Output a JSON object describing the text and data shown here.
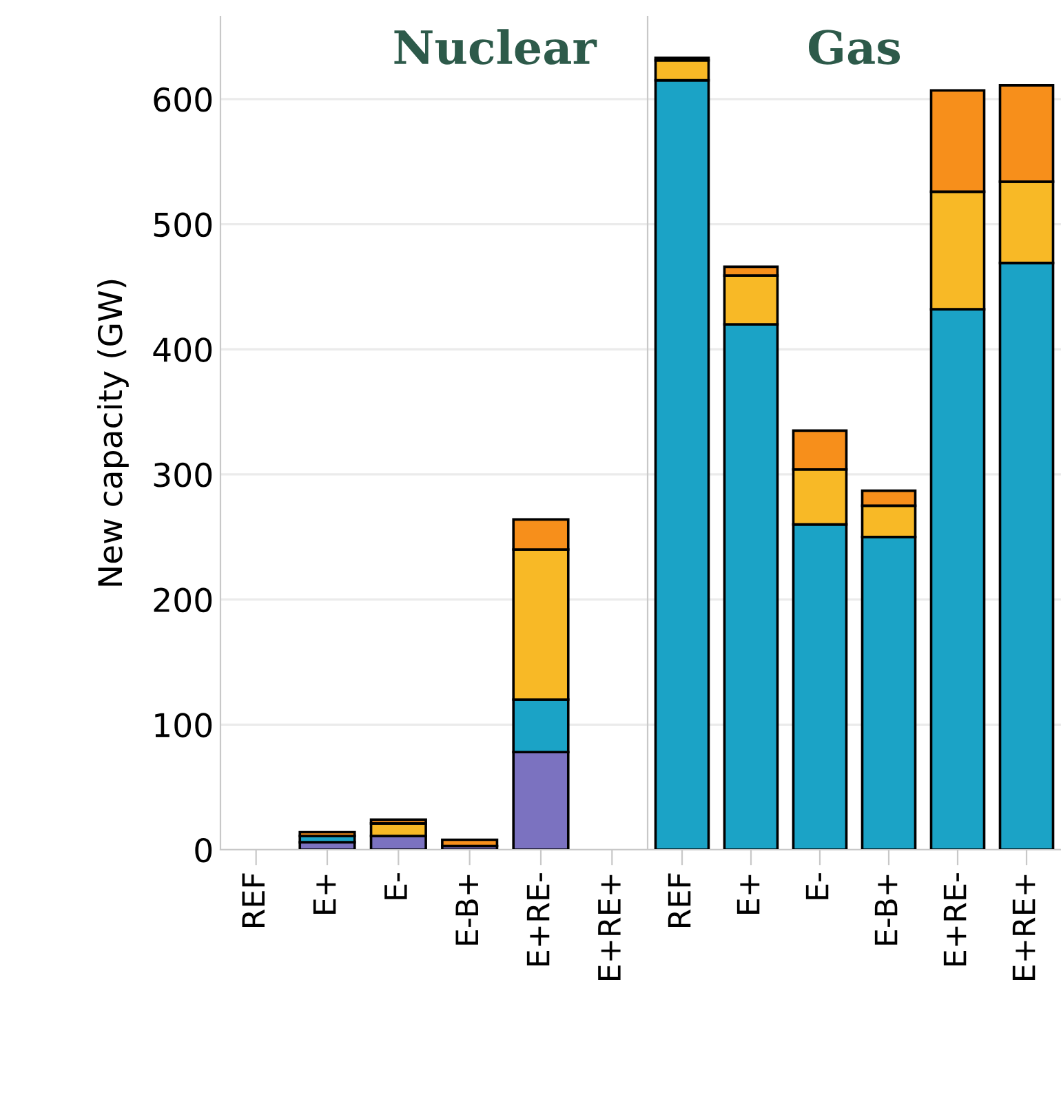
{
  "chart_data": [
    {
      "type": "bar",
      "title": "Nuclear",
      "ylabel": "New capacity (GW)",
      "stacked": true,
      "categories": [
        "REF",
        "E+",
        "E-",
        "E-B+",
        "E+RE-",
        "E+RE+"
      ],
      "ylim": [
        0,
        666
      ],
      "yticks": [
        0,
        100,
        200,
        300,
        400,
        500,
        600
      ],
      "grid": "y",
      "series": [
        {
          "color": "#7b72c0",
          "values": [
            null,
            6,
            11,
            3,
            78,
            null
          ]
        },
        {
          "color": "#1ba3c6",
          "values": [
            null,
            5,
            null,
            null,
            42,
            null
          ]
        },
        {
          "color": "#f8b926",
          "values": [
            null,
            null,
            10,
            null,
            120,
            null
          ]
        },
        {
          "color": "#f78f1b",
          "values": [
            null,
            3,
            3,
            5,
            24,
            null
          ]
        }
      ]
    },
    {
      "type": "bar",
      "title": "Gas",
      "stacked": true,
      "tick_labels": "x",
      "categories": [
        "REF",
        "E+",
        "E-",
        "E-B+",
        "E+RE-",
        "E+RE+"
      ],
      "ylim": [
        0,
        666
      ],
      "yticks": [
        0,
        100,
        200,
        300,
        400,
        500,
        600
      ],
      "grid": "y",
      "series": [
        {
          "color": "#1ba3c6",
          "values": [
            615,
            420,
            260,
            250,
            432,
            469
          ]
        },
        {
          "color": "#f8b926",
          "values": [
            16,
            39,
            44,
            25,
            94,
            65
          ]
        },
        {
          "color": "#f78f1b",
          "values": [
            2,
            7,
            31,
            12,
            81,
            77
          ]
        }
      ]
    }
  ]
}
